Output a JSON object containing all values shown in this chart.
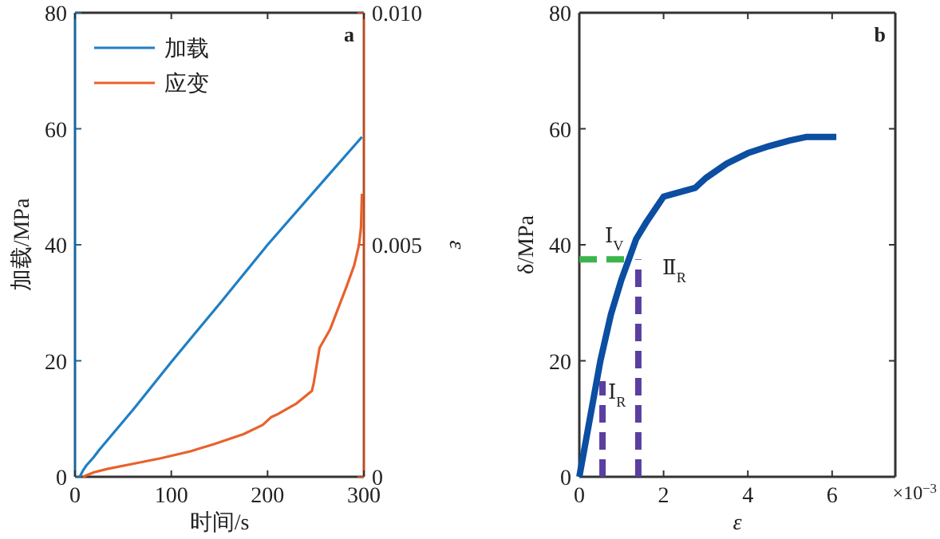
{
  "chart_data": [
    {
      "type": "line",
      "xlabel": "时间/s",
      "ylabel": "加载/MPa",
      "y2label": "ε",
      "xlim": [
        0,
        300
      ],
      "xticks": [
        0,
        100,
        200,
        300
      ],
      "ylim": [
        0,
        80
      ],
      "yticks": [
        0,
        20,
        40,
        60,
        80
      ],
      "y2lim": [
        0,
        0.01
      ],
      "y2ticks": [
        0,
        0.005,
        {
          "value": 0.01,
          "label": "0.010"
        }
      ],
      "legend": "top left",
      "annotations": [
        "a"
      ],
      "series": [
        {
          "name": "加载",
          "color": "#1f7fc4",
          "x": [
            5,
            8,
            12,
            19.5,
            25,
            60,
            100,
            150,
            200,
            250,
            298
          ],
          "values": [
            0,
            1,
            2,
            3.4,
            4.6,
            11.5,
            19.8,
            29.8,
            40,
            49.5,
            58.6
          ]
        },
        {
          "name": "应变",
          "color": "#e8612c",
          "axis": "y2",
          "x": [
            8,
            20,
            33.5,
            60,
            89,
            120,
            145,
            175,
            195,
            204,
            209.5,
            230,
            246,
            248,
            254,
            265,
            273.5,
            282,
            290,
            295,
            297,
            298
          ],
          "values": [
            0,
            0.0001,
            0.00017,
            0.00028,
            0.0004,
            0.00055,
            0.00071,
            0.00092,
            0.00112,
            0.00129,
            0.00134,
            0.00158,
            0.00185,
            0.00203,
            0.00278,
            0.00318,
            0.00364,
            0.0041,
            0.00456,
            0.005,
            0.00537,
            0.0061
          ]
        }
      ]
    },
    {
      "type": "line",
      "xlabel": "ε",
      "ylabel": "δ/MPa",
      "xlim": [
        0,
        7.5
      ],
      "xticks": [
        0,
        2,
        4,
        6
      ],
      "ylim": [
        0,
        80
      ],
      "yticks": [
        0,
        20,
        40,
        60,
        80
      ],
      "annotations": [
        "b",
        "×10$^{−3}$",
        "Ⅰ$_{V}$",
        "Ⅱ$_{R}$",
        "Ⅰ$_{R}$"
      ],
      "series": [
        {
          "color": "#0b4ea2",
          "x": [
            0,
            0.25,
            0.5,
            0.75,
            1,
            1.25,
            1.35,
            1.6,
            2,
            2.2,
            2.75,
            3,
            3.5,
            4,
            4.5,
            5,
            5.4,
            6.1
          ],
          "values": [
            0,
            10,
            20,
            28,
            34,
            39,
            41,
            44,
            48.3,
            48.7,
            49.8,
            51.5,
            54,
            55.8,
            57,
            58,
            58.6,
            58.6
          ]
        },
        {
          "color": "#3cb44b",
          "line_style": "dashed",
          "x": [
            0,
            1.2
          ],
          "values": [
            37.5,
            37.5
          ]
        },
        {
          "color": "#5a3fa0",
          "line_style": "dashed",
          "x": [
            0.55,
            0.55
          ],
          "values": [
            0,
            16.5
          ]
        },
        {
          "color": "#5a3fa0",
          "line_style": "dashed",
          "x": [
            1.4,
            1.4
          ],
          "values": [
            0,
            37.5
          ]
        }
      ]
    }
  ]
}
